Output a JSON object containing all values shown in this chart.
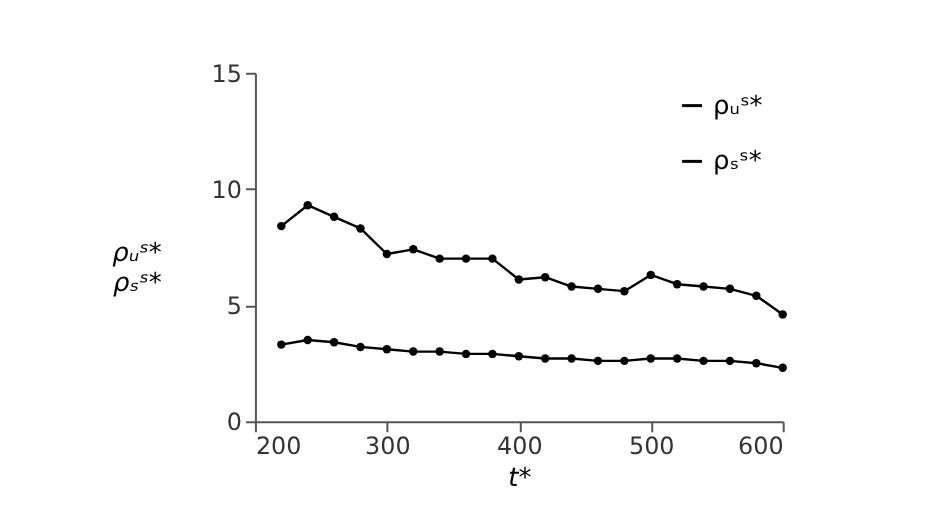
{
  "chart_data": {
    "type": "line",
    "xlabel": "t*",
    "ylabel": "ρᵤˢ*\nρₛˢ*",
    "x": [
      220,
      240,
      260,
      280,
      300,
      320,
      340,
      360,
      380,
      400,
      420,
      440,
      460,
      480,
      500,
      520,
      540,
      560,
      580,
      600
    ],
    "series": [
      {
        "name": "ρᵤˢ*",
        "color": "#000000",
        "values": [
          8.4,
          9.3,
          8.8,
          8.3,
          7.2,
          7.4,
          7.0,
          7.0,
          7.0,
          6.1,
          6.2,
          5.8,
          5.7,
          5.6,
          6.3,
          5.9,
          5.8,
          5.7,
          5.4,
          4.6
        ]
      },
      {
        "name": "ρₛˢ*",
        "color": "#000000",
        "values": [
          3.3,
          3.5,
          3.4,
          3.2,
          3.1,
          3.0,
          3.0,
          2.9,
          2.9,
          2.8,
          2.7,
          2.7,
          2.6,
          2.6,
          2.7,
          2.7,
          2.6,
          2.6,
          2.5,
          2.3
        ]
      }
    ],
    "xlim": [
      200,
      600
    ],
    "xticks": [
      200,
      300,
      400,
      500,
      600
    ],
    "ylim": [
      0,
      15
    ],
    "yticks": [
      0,
      5,
      10,
      15
    ],
    "grid": false,
    "legend": "top right",
    "marker": "circle",
    "line_style": "solid"
  }
}
